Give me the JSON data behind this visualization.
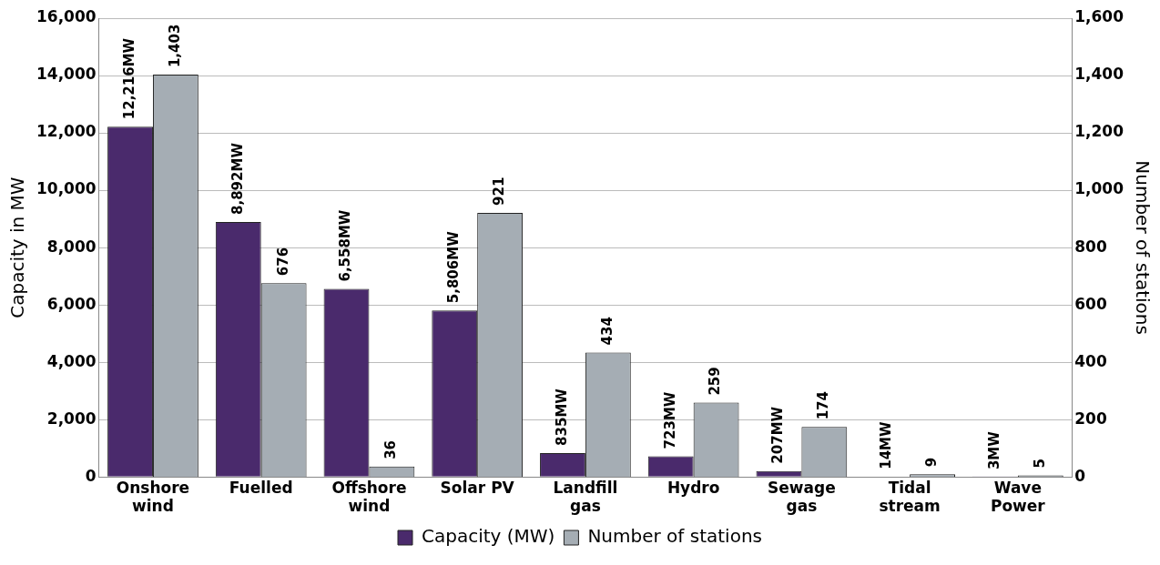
{
  "chart_data": {
    "type": "bar",
    "ylabel": "Capacity in MW",
    "y2label": "Number of stations",
    "categories": [
      "Onshore\nwind",
      "Fuelled",
      "Offshore\nwind",
      "Solar PV",
      "Landfill\ngas",
      "Hydro",
      "Sewage\ngas",
      "Tidal\nstream",
      "Wave\nPower"
    ],
    "series": [
      {
        "name": "Capacity (MW)",
        "color": "#4a2a6c",
        "values": [
          12216,
          8892,
          6558,
          5806,
          835,
          723,
          207,
          14,
          3
        ],
        "value_labels": [
          "12,216MW",
          "8,892MW",
          "6,558MW",
          "5,806MW",
          "835MW",
          "723MW",
          "207MW",
          "14MW",
          "3MW"
        ]
      },
      {
        "name": "Number of stations",
        "color": "#a5adb4",
        "axis": "y2",
        "values": [
          1403,
          676,
          36,
          921,
          434,
          259,
          174,
          9,
          5
        ],
        "value_labels": [
          "1,403",
          "676",
          "36",
          "921",
          "434",
          "259",
          "174",
          "9",
          "5"
        ]
      }
    ],
    "ylim": [
      0,
      16000
    ],
    "yticks": [
      {
        "value": 0,
        "label": "0"
      },
      {
        "value": 2000,
        "label": "2,000"
      },
      {
        "value": 4000,
        "label": "4,000"
      },
      {
        "value": 6000,
        "label": "6,000"
      },
      {
        "value": 8000,
        "label": "8,000"
      },
      {
        "value": 10000,
        "label": "10,000"
      },
      {
        "value": 12000,
        "label": "12,000"
      },
      {
        "value": 14000,
        "label": "14,000"
      },
      {
        "value": 16000,
        "label": "16,000"
      }
    ],
    "y2lim": [
      0,
      1600
    ],
    "y2ticks": [
      {
        "value": 0,
        "label": "0"
      },
      {
        "value": 200,
        "label": "200"
      },
      {
        "value": 400,
        "label": "400"
      },
      {
        "value": 600,
        "label": "600"
      },
      {
        "value": 800,
        "label": "800"
      },
      {
        "value": 1000,
        "label": "1,000"
      },
      {
        "value": 1200,
        "label": "1,200"
      },
      {
        "value": 1400,
        "label": "1,400"
      },
      {
        "value": 1600,
        "label": "1,600"
      }
    ],
    "grid": "y",
    "legend": "bottom"
  }
}
